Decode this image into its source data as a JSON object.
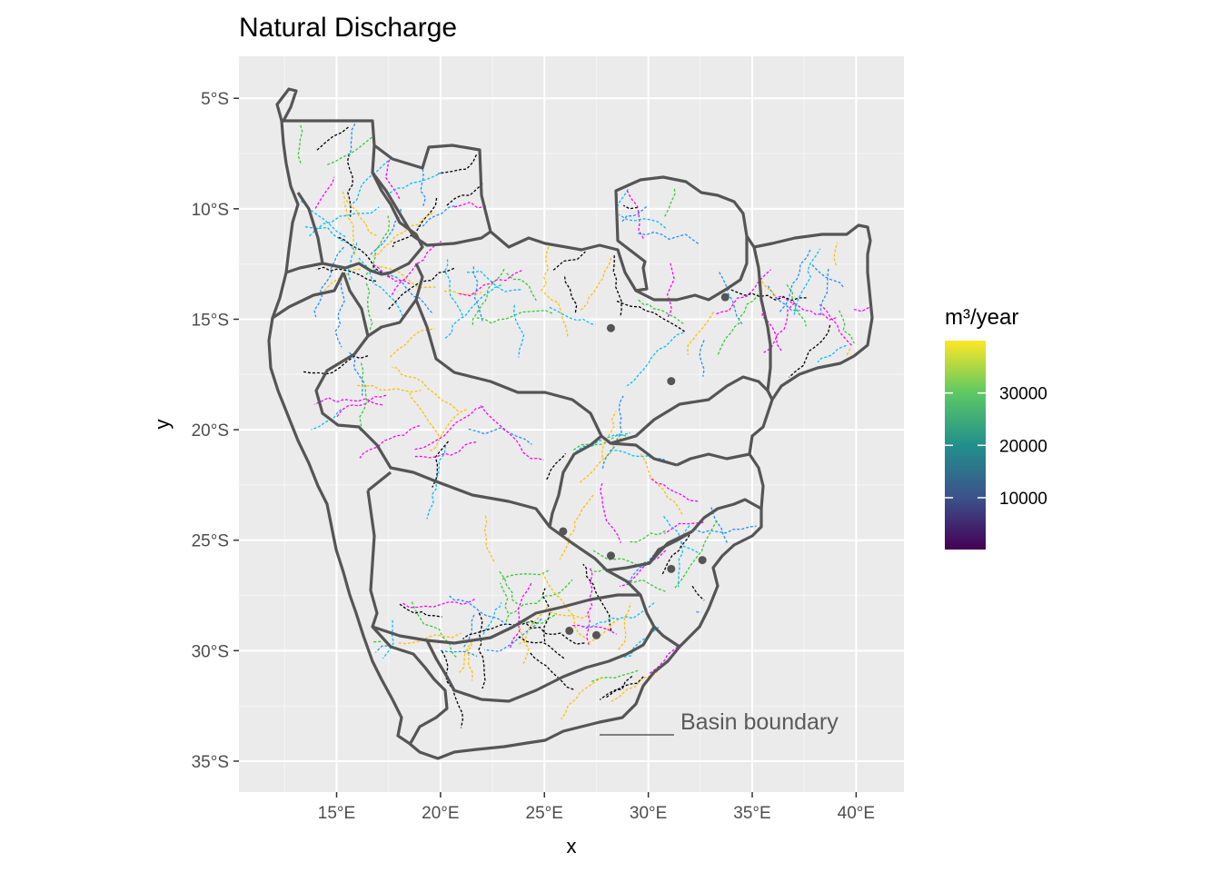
{
  "title": "Natural Discharge",
  "axes": {
    "x": {
      "label": "x",
      "ticks": [
        "15°E",
        "20°E",
        "25°E",
        "30°E",
        "35°E",
        "40°E"
      ],
      "tick_values": [
        15,
        20,
        25,
        30,
        35,
        40
      ],
      "range": [
        10.3,
        42.3
      ]
    },
    "y": {
      "label": "y",
      "ticks": [
        "5°S",
        "10°S",
        "15°S",
        "20°S",
        "25°S",
        "30°S",
        "35°S"
      ],
      "tick_values": [
        -5,
        -10,
        -15,
        -20,
        -25,
        -30,
        -35
      ],
      "range": [
        -36.4,
        -3.1
      ]
    }
  },
  "legend": {
    "title": "m³/year",
    "ticks": [
      "10000",
      "20000",
      "30000"
    ],
    "tick_values": [
      10000,
      20000,
      30000
    ],
    "range": [
      100,
      40000
    ],
    "colors": [
      "#440154",
      "#3b528b",
      "#21908c",
      "#5dc863",
      "#fde725"
    ]
  },
  "annotation": {
    "text": "Basin boundary",
    "color": "#5a5a5a"
  },
  "colors": {
    "panel": "#ebebeb",
    "grid": "#ffffff",
    "boundary": "#555555",
    "river_palette": [
      "#00bfff",
      "#ff00ff",
      "#ffc000",
      "#000000",
      "#33cc33",
      "#1e90ff"
    ]
  },
  "points": [
    {
      "lon": 28.2,
      "lat": -15.4
    },
    {
      "lon": 33.7,
      "lat": -14.0
    },
    {
      "lon": 31.1,
      "lat": -17.8
    },
    {
      "lon": 25.9,
      "lat": -24.6
    },
    {
      "lon": 28.2,
      "lat": -25.7
    },
    {
      "lon": 31.1,
      "lat": -26.3
    },
    {
      "lon": 32.6,
      "lat": -25.9
    },
    {
      "lon": 26.2,
      "lat": -29.1
    },
    {
      "lon": 27.5,
      "lat": -29.3
    }
  ]
}
